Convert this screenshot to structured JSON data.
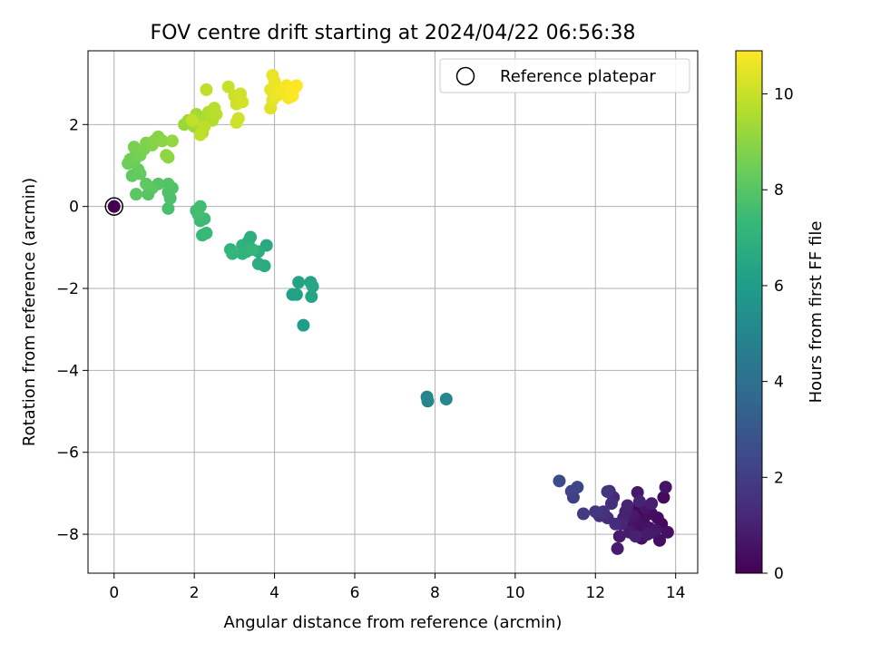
{
  "chart_data": {
    "type": "scatter",
    "title": "FOV centre drift starting at 2024/04/22 06:56:38",
    "xlabel": "Angular distance from reference (arcmin)",
    "ylabel": "Rotation from reference (arcmin)",
    "xlim": [
      -0.65,
      14.55
    ],
    "ylim": [
      -8.95,
      3.8
    ],
    "xticks": [
      0,
      2,
      4,
      6,
      8,
      10,
      12,
      14
    ],
    "yticks": [
      -8,
      -6,
      -4,
      -2,
      0,
      2
    ],
    "grid": true,
    "legend": {
      "placement": "top-right",
      "entries": [
        "Reference platepar"
      ]
    },
    "reference_point": {
      "x": 0,
      "y": 0
    },
    "colorbar": {
      "label": "Hours from first FF file",
      "range": [
        0,
        10.9
      ],
      "ticks": [
        0,
        2,
        4,
        6,
        8,
        10
      ],
      "colormap": "viridis",
      "colors": [
        "#440154",
        "#482878",
        "#3e4989",
        "#31688e",
        "#26828e",
        "#1f9e89",
        "#35b779",
        "#6ece58",
        "#b5de2b",
        "#fde725"
      ]
    },
    "series": [
      {
        "points": [
          [
            13.0,
            -7.4,
            0.2
          ],
          [
            13.2,
            -7.6,
            0.3
          ],
          [
            13.4,
            -7.5,
            0.4
          ],
          [
            13.1,
            -7.8,
            0.5
          ],
          [
            12.9,
            -7.7,
            0.6
          ],
          [
            13.5,
            -7.9,
            0.7
          ],
          [
            13.3,
            -8.0,
            0.8
          ],
          [
            13.6,
            -8.15,
            0.4
          ],
          [
            13.8,
            -7.95,
            0.5
          ],
          [
            13.7,
            -7.1,
            0.3
          ],
          [
            13.75,
            -6.85,
            0.6
          ],
          [
            13.05,
            -6.98,
            0.7
          ],
          [
            13.4,
            -7.25,
            0.9
          ],
          [
            12.7,
            -7.6,
            1.0
          ],
          [
            12.8,
            -7.3,
            1.1
          ],
          [
            12.6,
            -8.05,
            0.8
          ],
          [
            12.55,
            -8.35,
            0.9
          ],
          [
            13.0,
            -8.05,
            1.0
          ],
          [
            12.45,
            -7.1,
            1.2
          ],
          [
            12.35,
            -6.95,
            1.3
          ],
          [
            12.4,
            -7.25,
            1.5
          ],
          [
            12.2,
            -7.45,
            1.6
          ],
          [
            12.5,
            -7.75,
            1.4
          ],
          [
            12.0,
            -7.45,
            1.7
          ],
          [
            11.7,
            -7.5,
            1.9
          ],
          [
            11.45,
            -7.1,
            2.1
          ],
          [
            11.4,
            -6.95,
            2.2
          ],
          [
            11.55,
            -6.85,
            2.3
          ],
          [
            11.1,
            -6.7,
            2.5
          ],
          [
            12.3,
            -6.96,
            1.8
          ],
          [
            13.2,
            -7.7,
            0.45
          ],
          [
            13.35,
            -7.85,
            0.55
          ],
          [
            13.55,
            -7.6,
            0.35
          ],
          [
            13.25,
            -7.35,
            0.65
          ],
          [
            12.95,
            -7.55,
            0.75
          ],
          [
            12.85,
            -7.95,
            0.85
          ],
          [
            13.15,
            -8.1,
            0.5
          ],
          [
            13.45,
            -7.95,
            0.6
          ],
          [
            13.65,
            -7.75,
            0.25
          ],
          [
            12.75,
            -7.45,
            0.95
          ],
          [
            13.1,
            -7.2,
            1.05
          ],
          [
            12.65,
            -7.75,
            1.15
          ],
          [
            12.3,
            -7.6,
            1.35
          ],
          [
            12.1,
            -7.55,
            1.45
          ],
          [
            7.8,
            -4.65,
            4.9
          ],
          [
            7.82,
            -4.75,
            5.0
          ],
          [
            8.28,
            -4.7,
            5.05
          ],
          [
            4.72,
            -2.9,
            6.1
          ],
          [
            4.45,
            -2.15,
            6.2
          ],
          [
            4.55,
            -2.15,
            6.25
          ],
          [
            4.6,
            -1.85,
            6.3
          ],
          [
            4.92,
            -2.2,
            6.4
          ],
          [
            4.9,
            -1.85,
            6.35
          ],
          [
            4.95,
            -1.95,
            6.45
          ],
          [
            3.8,
            -0.95,
            6.6
          ],
          [
            3.75,
            -1.45,
            6.7
          ],
          [
            3.6,
            -1.4,
            6.75
          ],
          [
            3.6,
            -1.1,
            6.8
          ],
          [
            3.4,
            -0.75,
            6.85
          ],
          [
            3.35,
            -0.85,
            6.9
          ],
          [
            3.2,
            -0.95,
            6.95
          ],
          [
            3.3,
            -1.1,
            7.0
          ],
          [
            3.2,
            -1.15,
            7.05
          ],
          [
            2.9,
            -1.05,
            7.1
          ],
          [
            2.95,
            -1.15,
            7.15
          ],
          [
            3.45,
            -1.05,
            7.2
          ],
          [
            2.2,
            -0.7,
            7.3
          ],
          [
            2.3,
            -0.65,
            7.35
          ],
          [
            2.15,
            -0.35,
            7.4
          ],
          [
            2.25,
            -0.3,
            7.45
          ],
          [
            2.05,
            -0.1,
            7.5
          ],
          [
            2.15,
            0.0,
            7.55
          ],
          [
            2.1,
            -0.2,
            7.6
          ],
          [
            1.35,
            -0.05,
            7.7
          ],
          [
            1.4,
            0.2,
            7.75
          ],
          [
            1.35,
            0.35,
            7.8
          ],
          [
            1.45,
            0.45,
            7.85
          ],
          [
            1.35,
            0.55,
            7.9
          ],
          [
            1.1,
            0.55,
            7.95
          ],
          [
            0.85,
            0.3,
            8.0
          ],
          [
            0.95,
            0.45,
            8.05
          ],
          [
            0.55,
            0.3,
            8.1
          ],
          [
            0.8,
            0.55,
            8.15
          ],
          [
            0.45,
            0.75,
            8.2
          ],
          [
            0.65,
            0.8,
            8.25
          ],
          [
            0.6,
            0.9,
            8.3
          ],
          [
            0.5,
            1.1,
            8.4
          ],
          [
            0.35,
            1.05,
            8.45
          ],
          [
            0.4,
            1.15,
            8.5
          ],
          [
            0.55,
            1.3,
            8.55
          ],
          [
            0.65,
            1.25,
            8.6
          ],
          [
            0.5,
            1.45,
            8.65
          ],
          [
            0.75,
            1.4,
            8.7
          ],
          [
            0.8,
            1.55,
            8.75
          ],
          [
            0.95,
            1.5,
            8.8
          ],
          [
            1.0,
            1.6,
            8.85
          ],
          [
            1.1,
            1.7,
            8.9
          ],
          [
            1.2,
            1.6,
            8.95
          ],
          [
            1.35,
            1.2,
            9.0
          ],
          [
            1.3,
            1.25,
            9.05
          ],
          [
            1.45,
            1.6,
            9.1
          ],
          [
            1.75,
            2.0,
            9.2
          ],
          [
            1.85,
            2.1,
            9.25
          ],
          [
            2.0,
            1.95,
            9.3
          ],
          [
            2.1,
            2.1,
            9.35
          ],
          [
            2.05,
            2.25,
            9.4
          ],
          [
            2.2,
            1.8,
            9.45
          ],
          [
            2.15,
            2.0,
            9.5
          ],
          [
            2.3,
            2.15,
            9.55
          ],
          [
            2.35,
            2.3,
            9.6
          ],
          [
            2.45,
            2.1,
            9.65
          ],
          [
            2.5,
            2.4,
            9.7
          ],
          [
            2.55,
            2.25,
            9.75
          ],
          [
            2.25,
            1.95,
            9.8
          ],
          [
            2.15,
            1.75,
            9.85
          ],
          [
            1.95,
            2.1,
            9.9
          ],
          [
            2.3,
            2.85,
            9.85
          ],
          [
            2.85,
            2.92,
            10.0
          ],
          [
            3.0,
            2.7,
            10.05
          ],
          [
            3.05,
            2.5,
            10.1
          ],
          [
            3.15,
            2.75,
            10.15
          ],
          [
            3.2,
            2.55,
            10.2
          ],
          [
            3.05,
            2.05,
            10.1
          ],
          [
            3.1,
            2.15,
            10.15
          ],
          [
            3.9,
            2.4,
            10.4
          ],
          [
            3.95,
            2.6,
            10.45
          ],
          [
            3.9,
            2.85,
            10.5
          ],
          [
            3.95,
            3.2,
            10.55
          ],
          [
            4.0,
            3.05,
            10.6
          ],
          [
            4.05,
            2.7,
            10.65
          ],
          [
            4.15,
            2.85,
            10.7
          ],
          [
            4.25,
            2.75,
            10.75
          ],
          [
            4.3,
            2.95,
            10.8
          ],
          [
            4.4,
            2.85,
            10.85
          ],
          [
            4.5,
            2.9,
            10.9
          ],
          [
            4.45,
            2.7,
            10.88
          ],
          [
            4.35,
            2.65,
            10.82
          ],
          [
            4.55,
            2.95,
            10.9
          ]
        ]
      }
    ]
  }
}
